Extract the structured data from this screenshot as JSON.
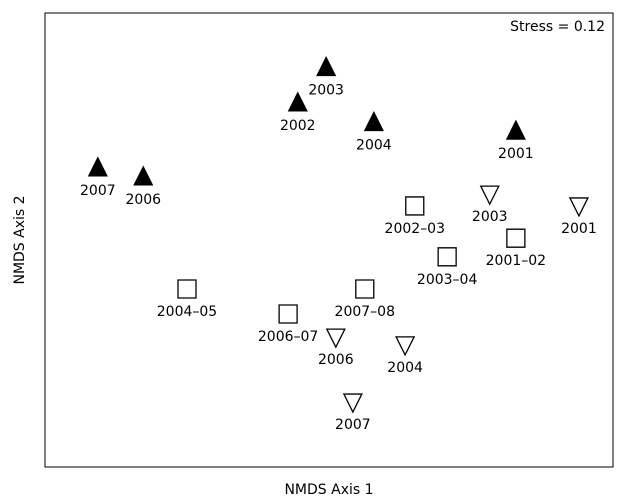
{
  "chart_data": {
    "type": "scatter",
    "xlabel": "NMDS Axis 1",
    "ylabel": "NMDS Axis 2",
    "annotation": "Stress = 0.12",
    "xlim": [
      0,
      100
    ],
    "ylim": [
      0,
      100
    ],
    "series": [
      {
        "marker": "triangle-up",
        "filled": true,
        "color": "#000000",
        "labels": [
          "2007",
          "2006",
          "2002",
          "2003",
          "2004",
          "2001"
        ],
        "x": [
          9.3,
          17.3,
          44.5,
          49.5,
          57.9,
          82.9
        ],
        "values": [
          65.9,
          63.9,
          80.2,
          88.0,
          75.9,
          74.0
        ]
      },
      {
        "marker": "square",
        "filled": false,
        "color": "#000000",
        "labels": [
          "2002–03",
          "2003–04",
          "2001–02",
          "2004–05",
          "2006–07",
          "2007–08"
        ],
        "x": [
          65.1,
          70.8,
          82.9,
          25.0,
          42.8,
          56.3
        ],
        "values": [
          57.5,
          46.3,
          50.4,
          39.2,
          33.7,
          39.2
        ]
      },
      {
        "marker": "triangle-down",
        "filled": false,
        "color": "#000000",
        "labels": [
          "2003",
          "2001",
          "2006",
          "2004",
          "2007"
        ],
        "x": [
          78.3,
          94.0,
          51.2,
          63.4,
          54.2
        ],
        "values": [
          60.1,
          57.5,
          28.6,
          26.9,
          14.3
        ]
      }
    ]
  }
}
